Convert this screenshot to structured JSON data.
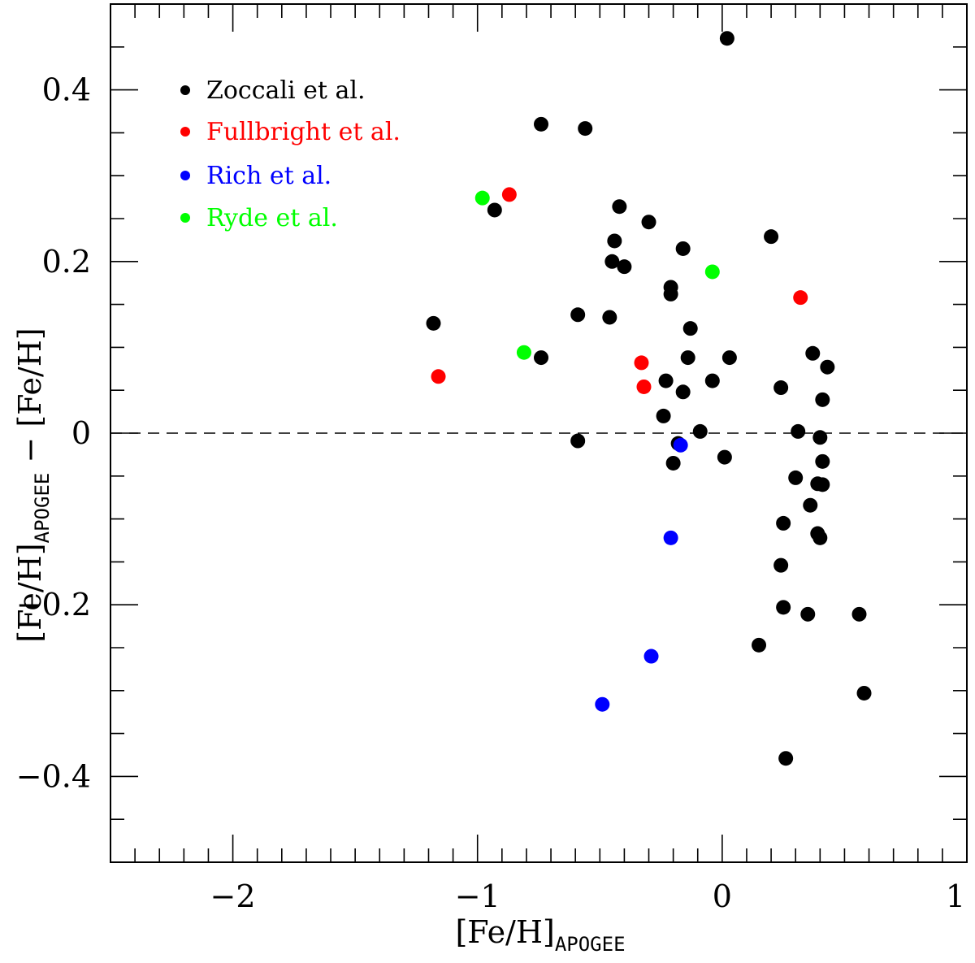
{
  "chart_data": {
    "type": "scatter",
    "title": "",
    "xlabel": {
      "main": "[Fe/H]",
      "subscript": "APOGEE"
    },
    "ylabel": {
      "main": "[Fe/H]",
      "subscript": "APOGEE",
      "suffix": " − [Fe/H]"
    },
    "xlim": [
      -2.5,
      1.0
    ],
    "ylim": [
      -0.5,
      0.5
    ],
    "x_ticks": [
      {
        "value": -2,
        "label": "−2"
      },
      {
        "value": -1,
        "label": "−1"
      },
      {
        "value": 0,
        "label": "0"
      },
      {
        "value": 1,
        "label": "1"
      }
    ],
    "y_ticks": [
      {
        "value": 0.4,
        "label": "0.4"
      },
      {
        "value": 0.2,
        "label": "0.2"
      },
      {
        "value": 0,
        "label": "0"
      },
      {
        "value": -0.2,
        "label": "−0.2"
      },
      {
        "value": -0.4,
        "label": "−0.4"
      }
    ],
    "x_minor_step": 0.1,
    "y_minor_step": 0.05,
    "reference_line": {
      "y": 0,
      "style": "dashed"
    },
    "legend_position": "top-left",
    "series": [
      {
        "name": "Zoccali et al.",
        "color": "#000000",
        "points": [
          [
            0.02,
            0.46
          ],
          [
            -0.74,
            0.36
          ],
          [
            -0.56,
            0.355
          ],
          [
            -0.93,
            0.26
          ],
          [
            -0.42,
            0.264
          ],
          [
            -0.3,
            0.246
          ],
          [
            -0.44,
            0.224
          ],
          [
            0.2,
            0.229
          ],
          [
            -0.16,
            0.215
          ],
          [
            -0.45,
            0.2
          ],
          [
            -0.4,
            0.194
          ],
          [
            -0.21,
            0.17
          ],
          [
            -0.21,
            0.162
          ],
          [
            -1.18,
            0.128
          ],
          [
            -0.59,
            0.138
          ],
          [
            -0.46,
            0.135
          ],
          [
            -0.13,
            0.122
          ],
          [
            -0.74,
            0.088
          ],
          [
            -0.14,
            0.088
          ],
          [
            0.03,
            0.088
          ],
          [
            0.37,
            0.093
          ],
          [
            0.43,
            0.077
          ],
          [
            -0.23,
            0.061
          ],
          [
            -0.04,
            0.061
          ],
          [
            0.24,
            0.053
          ],
          [
            -0.16,
            0.048
          ],
          [
            0.41,
            0.039
          ],
          [
            -0.24,
            0.02
          ],
          [
            -0.09,
            0.002
          ],
          [
            0.31,
            0.002
          ],
          [
            -0.59,
            -0.009
          ],
          [
            0.4,
            -0.005
          ],
          [
            -0.18,
            -0.012
          ],
          [
            0.01,
            -0.028
          ],
          [
            -0.2,
            -0.035
          ],
          [
            0.41,
            -0.033
          ],
          [
            0.3,
            -0.052
          ],
          [
            0.39,
            -0.059
          ],
          [
            0.41,
            -0.06
          ],
          [
            0.36,
            -0.084
          ],
          [
            0.25,
            -0.105
          ],
          [
            0.39,
            -0.117
          ],
          [
            0.4,
            -0.122
          ],
          [
            0.24,
            -0.154
          ],
          [
            0.25,
            -0.203
          ],
          [
            0.35,
            -0.211
          ],
          [
            0.56,
            -0.211
          ],
          [
            0.15,
            -0.247
          ],
          [
            0.58,
            -0.303
          ],
          [
            0.26,
            -0.379
          ]
        ]
      },
      {
        "name": "Fullbright et al.",
        "color": "#ff0000",
        "points": [
          [
            -0.87,
            0.278
          ],
          [
            0.32,
            0.158
          ],
          [
            -0.33,
            0.082
          ],
          [
            -0.32,
            0.054
          ],
          [
            -1.16,
            0.066
          ]
        ]
      },
      {
        "name": "Rich et al.",
        "color": "#0000ff",
        "points": [
          [
            -0.17,
            -0.014
          ],
          [
            -0.21,
            -0.122
          ],
          [
            -0.29,
            -0.26
          ],
          [
            -0.49,
            -0.316
          ]
        ]
      },
      {
        "name": "Ryde et al.",
        "color": "#00ff00",
        "points": [
          [
            -0.98,
            0.274
          ],
          [
            -0.04,
            0.188
          ],
          [
            -0.81,
            0.094
          ]
        ]
      }
    ]
  }
}
